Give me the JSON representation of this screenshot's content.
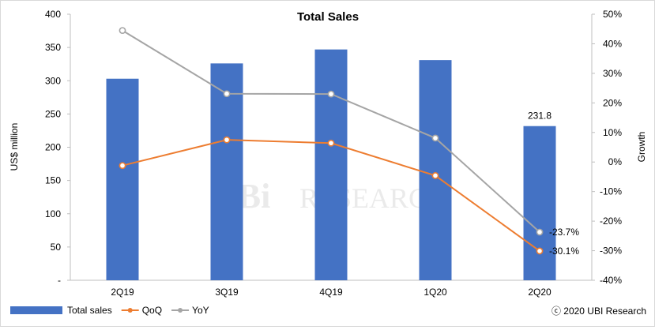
{
  "chart_data": {
    "type": "bar",
    "title": "Total Sales",
    "ylabel": "US$ million",
    "y2label": "Growth",
    "categories": [
      "2Q19",
      "3Q19",
      "4Q19",
      "1Q20",
      "2Q20"
    ],
    "ylim": [
      0,
      400
    ],
    "y2lim": [
      -40,
      50
    ],
    "yticks": [
      "-",
      "50",
      "100",
      "150",
      "200",
      "250",
      "300",
      "350",
      "400"
    ],
    "y2ticks": [
      "-40%",
      "-30%",
      "-20%",
      "-10%",
      "0%",
      "10%",
      "20%",
      "30%",
      "40%",
      "50%"
    ],
    "series": [
      {
        "name": "Total sales",
        "type": "bar",
        "axis": "left",
        "values": [
          303,
          326,
          347,
          331,
          231.8
        ],
        "color": "#4472c4"
      },
      {
        "name": "QoQ",
        "type": "line",
        "axis": "right",
        "values": [
          -1.2,
          7.5,
          6.4,
          -4.6,
          -30.1
        ],
        "color": "#ed7d31"
      },
      {
        "name": "YoY",
        "type": "line",
        "axis": "right",
        "values": [
          44.5,
          23.1,
          23.0,
          8.1,
          -23.7
        ],
        "color": "#a5a5a5"
      }
    ],
    "data_labels": [
      {
        "series": "Total sales",
        "category": "2Q20",
        "text": "231.8"
      },
      {
        "series": "YoY",
        "category": "2Q20",
        "text": "-23.7%"
      },
      {
        "series": "QoQ",
        "category": "2Q20",
        "text": "-30.1%"
      }
    ],
    "legend": {
      "position": "bottom-left",
      "items": [
        "Total sales",
        "QoQ",
        "YoY"
      ]
    },
    "grid": false
  },
  "copyright": "ⓒ 2020 UBI Research",
  "watermark": {
    "logo": "UBi",
    "text": "RESEARCH"
  }
}
